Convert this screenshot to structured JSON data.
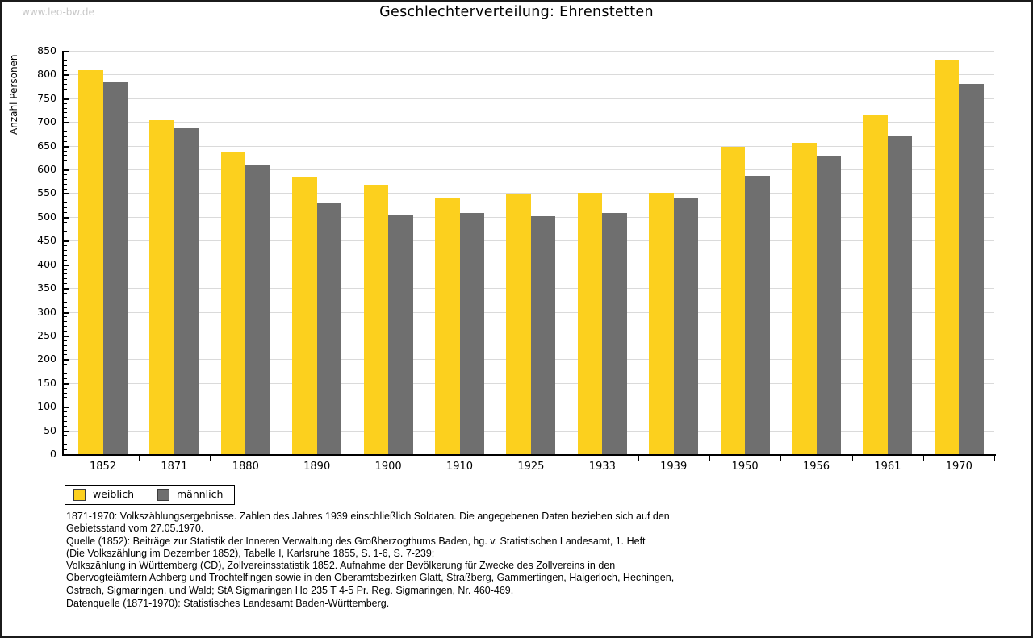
{
  "page": {
    "watermark": "www.leo-bw.de",
    "title": "Geschlechterverteilung: Ehrenstetten"
  },
  "chart_data": {
    "type": "bar",
    "title": "Geschlechterverteilung: Ehrenstetten",
    "xlabel": "",
    "ylabel": "Anzahl Personen",
    "ylim": [
      0,
      850
    ],
    "ytick_major": 50,
    "ytick_minor": 10,
    "grid": true,
    "legend_position": "bottom-left",
    "categories": [
      "1852",
      "1871",
      "1880",
      "1890",
      "1900",
      "1910",
      "1925",
      "1933",
      "1939",
      "1950",
      "1956",
      "1961",
      "1970"
    ],
    "series": [
      {
        "name": "weiblich",
        "color": "#fcd01e",
        "values": [
          810,
          703,
          637,
          584,
          567,
          541,
          549,
          551,
          550,
          647,
          656,
          715,
          830
        ]
      },
      {
        "name": "männlich",
        "color": "#6f6f6f",
        "values": [
          784,
          686,
          611,
          528,
          504,
          508,
          501,
          508,
          539,
          586,
          627,
          670,
          781
        ]
      }
    ]
  },
  "colors": {
    "grid": "#dadada",
    "axis": "#000000",
    "watermark": "#c7c7c7",
    "page_border": "#1b1b1b"
  },
  "footer": {
    "notes": [
      "1871-1970: Volkszählungsergebnisse. Zahlen des Jahres 1939 einschließlich Soldaten. Die angegebenen Daten beziehen sich auf den",
      "Gebietsstand vom 27.05.1970.",
      "Quelle (1852): Beiträge zur Statistik der Inneren Verwaltung des Großherzogthums Baden, hg. v. Statistischen Landesamt, 1. Heft",
      "(Die Volkszählung im Dezember 1852), Tabelle I, Karlsruhe 1855, S. 1-6, S. 7-239;",
      "Volkszählung in Württemberg (CD), Zollvereinsstatistik 1852. Aufnahme der Bevölkerung für Zwecke des Zollvereins in den",
      "Obervogteiämtern Achberg und Trochtelfingen sowie in den Oberamtsbezirken Glatt, Straßberg, Gammertingen, Haigerloch, Hechingen,",
      "Ostrach, Sigmaringen, und Wald; StA Sigmaringen Ho 235 T 4-5 Pr. Reg. Sigmaringen, Nr. 460-469."
    ],
    "datasource": "Datenquelle (1871-1970): Statistisches Landesamt Baden-Württemberg."
  }
}
